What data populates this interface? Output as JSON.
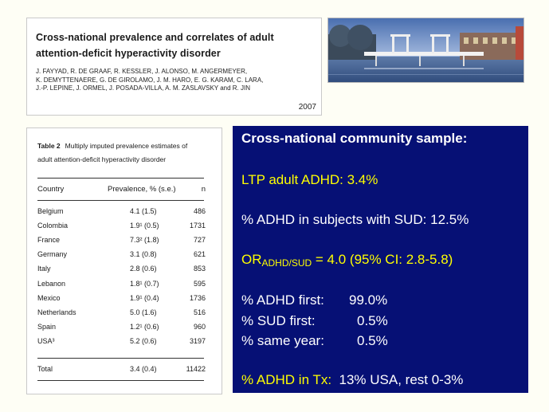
{
  "paper": {
    "title_line1": "Cross-national prevalence and correlates of adult",
    "title_line2": "attention-deficit hyperactivity disorder",
    "authors_line1": "J. FAYYAD, R. DE GRAAF, R. KESSLER, J. ALONSO, M. ANGERMEYER,",
    "authors_line2": "K. DEMYTTENAERE, G. DE GIROLAMO, J. M. HARO, E. G. KARAM, C. LARA,",
    "authors_line3": "J.-P. LEPINE, J. ORMEL, J. POSADA-VILLA, A. M. ZASLAVSKY and R. JIN",
    "year": "2007"
  },
  "table": {
    "caption_label": "Table 2",
    "caption_line1": "Multiply imputed prevalence estimates of",
    "caption_line2": "adult attention-deficit hyperactivity disorder",
    "headers": [
      "Country",
      "Prevalence, % (s.e.)",
      "n"
    ],
    "rows": [
      {
        "country": "Belgium",
        "prev": "4.1 (1.5)",
        "n": "486"
      },
      {
        "country": "Colombia",
        "prev": "1.9¹ (0.5)",
        "n": "1731"
      },
      {
        "country": "France",
        "prev": "7.3² (1.8)",
        "n": "727"
      },
      {
        "country": "Germany",
        "prev": "3.1 (0.8)",
        "n": "621"
      },
      {
        "country": "Italy",
        "prev": "2.8 (0.6)",
        "n": "853"
      },
      {
        "country": "Lebanon",
        "prev": "1.8¹ (0.7)",
        "n": "595"
      },
      {
        "country": "Mexico",
        "prev": "1.9¹ (0.4)",
        "n": "1736"
      },
      {
        "country": "Netherlands",
        "prev": "5.0 (1.6)",
        "n": "516"
      },
      {
        "country": "Spain",
        "prev": "1.2¹ (0.6)",
        "n": "960"
      },
      {
        "country": "USA³",
        "prev": "5.2 (0.6)",
        "n": "3197"
      }
    ],
    "total": {
      "country": "Total",
      "prev": "3.4 (0.4)",
      "n": "11422"
    }
  },
  "panel": {
    "heading": "Cross-national community sample:",
    "ltp": "LTP adult ADHD: 3.4%",
    "sud": "% ADHD in subjects with SUD: 12.5%",
    "or_prefix": "OR",
    "or_sub": "ADHD/SUD",
    "or_rest": " =  4.0 (95% CI: 2.8-5.8)",
    "first1_label": "% ADHD first:",
    "first1_value": "99.0%",
    "first2_label": "% SUD first:",
    "first2_value": "0.5%",
    "first3_label": "% same year:",
    "first3_value": "0.5%",
    "tx_label": "% ADHD in Tx:",
    "tx_value": "13% USA, rest 0-3%"
  },
  "colors": {
    "panel_bg": "#061075",
    "highlight": "#ffff00",
    "text_white": "#ffffff"
  }
}
